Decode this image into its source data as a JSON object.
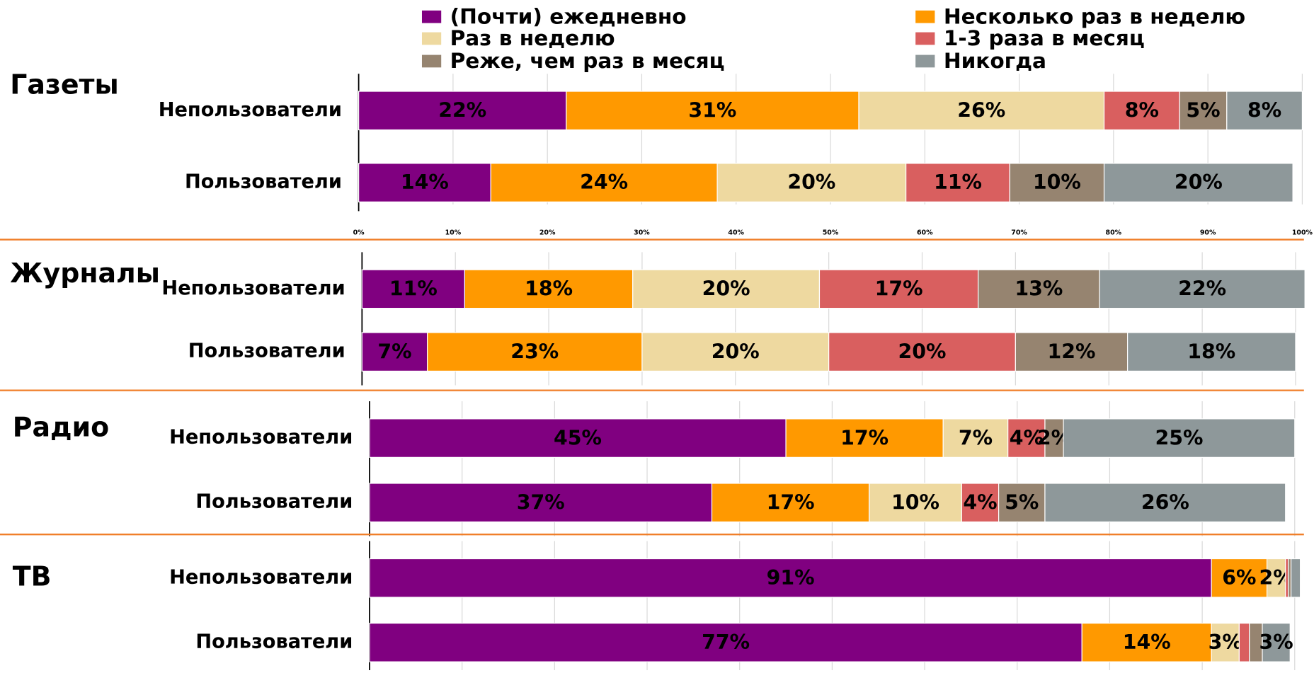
{
  "chart_data": {
    "type": "bar",
    "stacked": true,
    "series": [
      {
        "name": "(Почти) ежедневно",
        "color": "#800080"
      },
      {
        "name": "Несколько раз в неделю",
        "color": "#ff9900"
      },
      {
        "name": "Раз в неделю",
        "color": "#eed9a0"
      },
      {
        "name": "1-3 раза в месяц",
        "color": "#d95f5f"
      },
      {
        "name": "Реже, чем раз в месяц",
        "color": "#968470"
      },
      {
        "name": "Никогда",
        "color": "#8e989a"
      }
    ],
    "xlim": [
      0,
      100
    ],
    "xticks": [
      {
        "value": 0,
        "label": "0%"
      },
      {
        "value": 10,
        "label": "10%"
      },
      {
        "value": 20,
        "label": "20%"
      },
      {
        "value": 30,
        "label": "30%"
      },
      {
        "value": 40,
        "label": "40%"
      },
      {
        "value": 50,
        "label": "50%"
      },
      {
        "value": 60,
        "label": "60%"
      },
      {
        "value": 70,
        "label": "70%"
      },
      {
        "value": 80,
        "label": "80%"
      },
      {
        "value": 90,
        "label": "90%"
      },
      {
        "value": 100,
        "label": "100%"
      }
    ],
    "grid": true,
    "panels": [
      {
        "title": "Газеты",
        "categories": [
          "Непользователи",
          "Пользователи"
        ],
        "values": [
          [
            22,
            31,
            26,
            8,
            5,
            8
          ],
          [
            14,
            24,
            20,
            11,
            10,
            20
          ]
        ],
        "value_labels": [
          [
            "22%",
            "31%",
            "26%",
            "8%",
            "5%",
            "8%"
          ],
          [
            "14%",
            "24%",
            "20%",
            "11%",
            "10%",
            "20%"
          ]
        ]
      },
      {
        "title": "Журналы",
        "categories": [
          "Непользователи",
          "Пользователи"
        ],
        "values": [
          [
            11,
            18,
            20,
            17,
            13,
            22
          ],
          [
            7,
            23,
            20,
            20,
            12,
            18
          ]
        ],
        "value_labels": [
          [
            "11%",
            "18%",
            "20%",
            "17%",
            "13%",
            "22%"
          ],
          [
            "7%",
            "23%",
            "20%",
            "20%",
            "12%",
            "18%"
          ]
        ]
      },
      {
        "title": "Радио",
        "categories": [
          "Непользователи",
          "Пользователи"
        ],
        "values": [
          [
            45,
            17,
            7,
            4,
            2,
            25
          ],
          [
            37,
            17,
            10,
            4,
            5,
            26
          ]
        ],
        "value_labels": [
          [
            "45%",
            "17%",
            "7%",
            "4%",
            "2%",
            "25%"
          ],
          [
            "37%",
            "17%",
            "10%",
            "4%",
            "5%",
            "26%"
          ]
        ]
      },
      {
        "title": "ТВ",
        "categories": [
          "Непользователи",
          "Пользователи"
        ],
        "values": [
          [
            91,
            6,
            2,
            0.3,
            0.3,
            1
          ],
          [
            77,
            14,
            3,
            1.1,
            1.4,
            3
          ]
        ],
        "value_labels": [
          [
            "91%",
            "6%",
            "2%",
            null,
            null,
            null
          ],
          [
            "77%",
            "14%",
            "3%",
            null,
            null,
            "3%"
          ]
        ]
      }
    ]
  }
}
